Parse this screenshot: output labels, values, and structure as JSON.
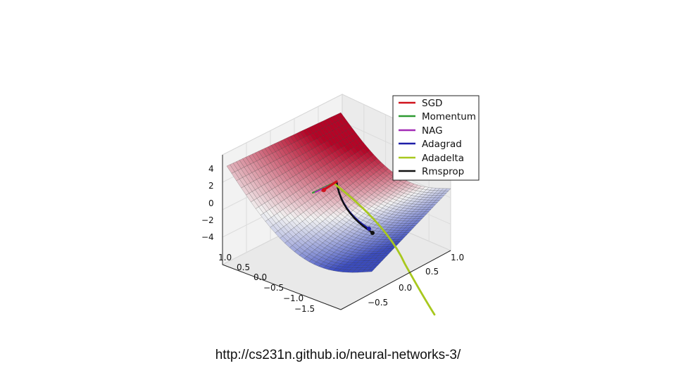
{
  "caption": "http://cs231n.github.io/neural-networks-3/",
  "chart_data": {
    "type": "surface",
    "title": "",
    "surface": "saddle",
    "colormap": [
      "#3b4cc0",
      "#f2f2f2",
      "#b40426"
    ],
    "z_ticks": [
      "4",
      "2",
      "0",
      "−2",
      "−4"
    ],
    "x_ticks": [
      "1.0",
      "0.5",
      "0.0",
      "−0.5",
      "−1.0",
      "−1.5"
    ],
    "y_ticks": [
      "−0.5",
      "0.0",
      "0.5",
      "1.0"
    ],
    "legend": {
      "placement": "top-right",
      "entries": [
        {
          "label": "SGD",
          "color": "#d0131c"
        },
        {
          "label": "Momentum",
          "color": "#2e9a32"
        },
        {
          "label": "NAG",
          "color": "#a22cb6"
        },
        {
          "label": "Adagrad",
          "color": "#1e1ea8"
        },
        {
          "label": "Adadelta",
          "color": "#a8c81e"
        },
        {
          "label": "Rmsprop",
          "color": "#111111"
        }
      ]
    }
  }
}
